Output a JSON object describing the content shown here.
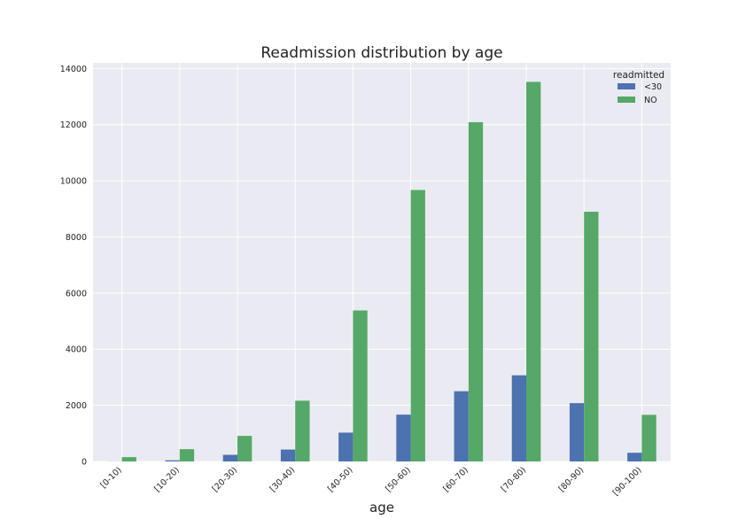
{
  "chart_data": {
    "type": "bar",
    "title": "Readmission distribution by age",
    "xlabel": "age",
    "ylabel": "",
    "categories": [
      "[0-10)",
      "[10-20)",
      "[20-30)",
      "[30-40)",
      "[40-50)",
      "[50-60)",
      "[60-70)",
      "[70-80)",
      "[80-90)",
      "[90-100)"
    ],
    "series": [
      {
        "name": "<30",
        "color": "#4C72B0",
        "values": [
          3,
          40,
          236,
          424,
          1027,
          1668,
          2502,
          3069,
          2078,
          310
        ]
      },
      {
        "name": "NO",
        "color": "#55A868",
        "values": [
          154,
          438,
          911,
          2164,
          5380,
          9671,
          12087,
          13524,
          8896,
          1660
        ]
      }
    ],
    "ylim": [
      0,
      14200
    ],
    "yticks": [
      0,
      2000,
      4000,
      6000,
      8000,
      10000,
      12000,
      14000
    ],
    "grid": true,
    "legend": {
      "title": "readmitted",
      "placement": "top-right"
    },
    "style": {
      "plot_background": "#EAEAF2",
      "grid_color": "#FFFFFF"
    }
  }
}
